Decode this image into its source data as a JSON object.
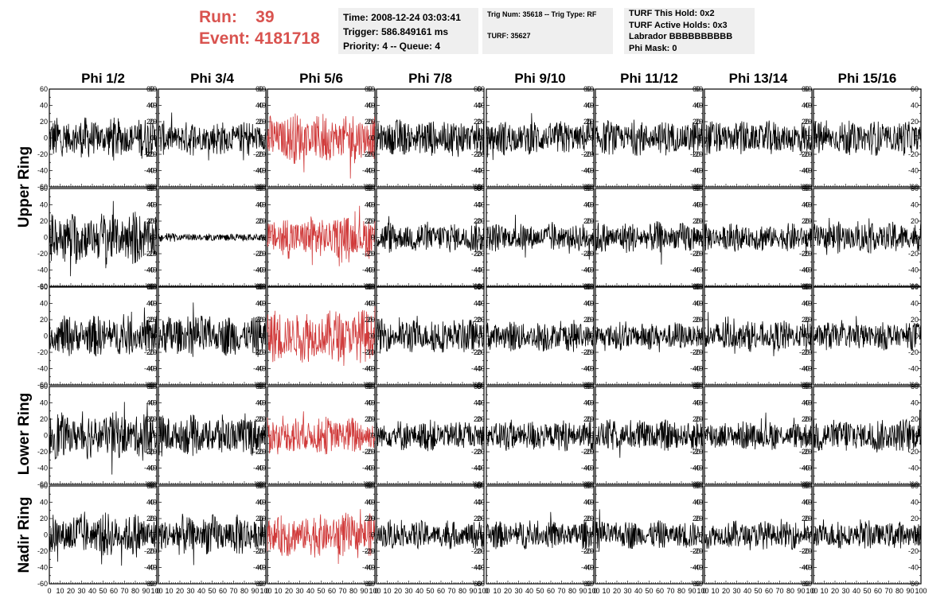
{
  "header": {
    "run_label": "Run:",
    "run_value": "39",
    "event_label": "Event:",
    "event_value": "4181718",
    "time_line": "Time: 2008-12-24 03:03:41",
    "trigger_line": "Trigger: 586.849161 ms",
    "priority_line": "Priority: 4 -- Queue: 4",
    "trig_num_line": "Trig Num: 35618 -- Trig Type: RF",
    "turf_line": "TURF: 35627",
    "turf_this_hold": "TURF This Hold: 0x2",
    "turf_active_holds": "TURF Active Holds: 0x3",
    "labrador": "Labrador BBBBBBBBBB",
    "phi_mask": "Phi Mask: 0",
    "accent_color": "#d9534f"
  },
  "chart_data": {
    "type": "line",
    "columns": [
      "Phi 1/2",
      "Phi 3/4",
      "Phi 5/6",
      "Phi 7/8",
      "Phi 9/10",
      "Phi 11/12",
      "Phi 13/14",
      "Phi 15/16"
    ],
    "ring_labels": [
      "Upper Ring",
      "Lower Ring",
      "Nadir Ring"
    ],
    "rows": 5,
    "ylim": [
      -60,
      60
    ],
    "xlim": [
      0,
      100
    ],
    "yticks_labeled": [
      "-60",
      "-40",
      "-20",
      "0",
      "20",
      "40",
      "60"
    ],
    "xtick_labels": [
      "0",
      "10",
      "20",
      "30",
      "40",
      "50",
      "60",
      "70",
      "80",
      "90",
      "100"
    ],
    "highlight_column": 2,
    "highlight_color": "#d03a3a",
    "trace_color": "#000000",
    "flat_trace_cells": [
      [
        1,
        1
      ]
    ],
    "trace_amplitude": [
      [
        26,
        22,
        32,
        24,
        22,
        22,
        22,
        22
      ],
      [
        34,
        4,
        28,
        20,
        18,
        20,
        18,
        20
      ],
      [
        26,
        26,
        34,
        22,
        20,
        18,
        20,
        18
      ],
      [
        30,
        26,
        24,
        20,
        20,
        20,
        18,
        22
      ],
      [
        28,
        26,
        28,
        18,
        18,
        18,
        18,
        18
      ]
    ]
  }
}
